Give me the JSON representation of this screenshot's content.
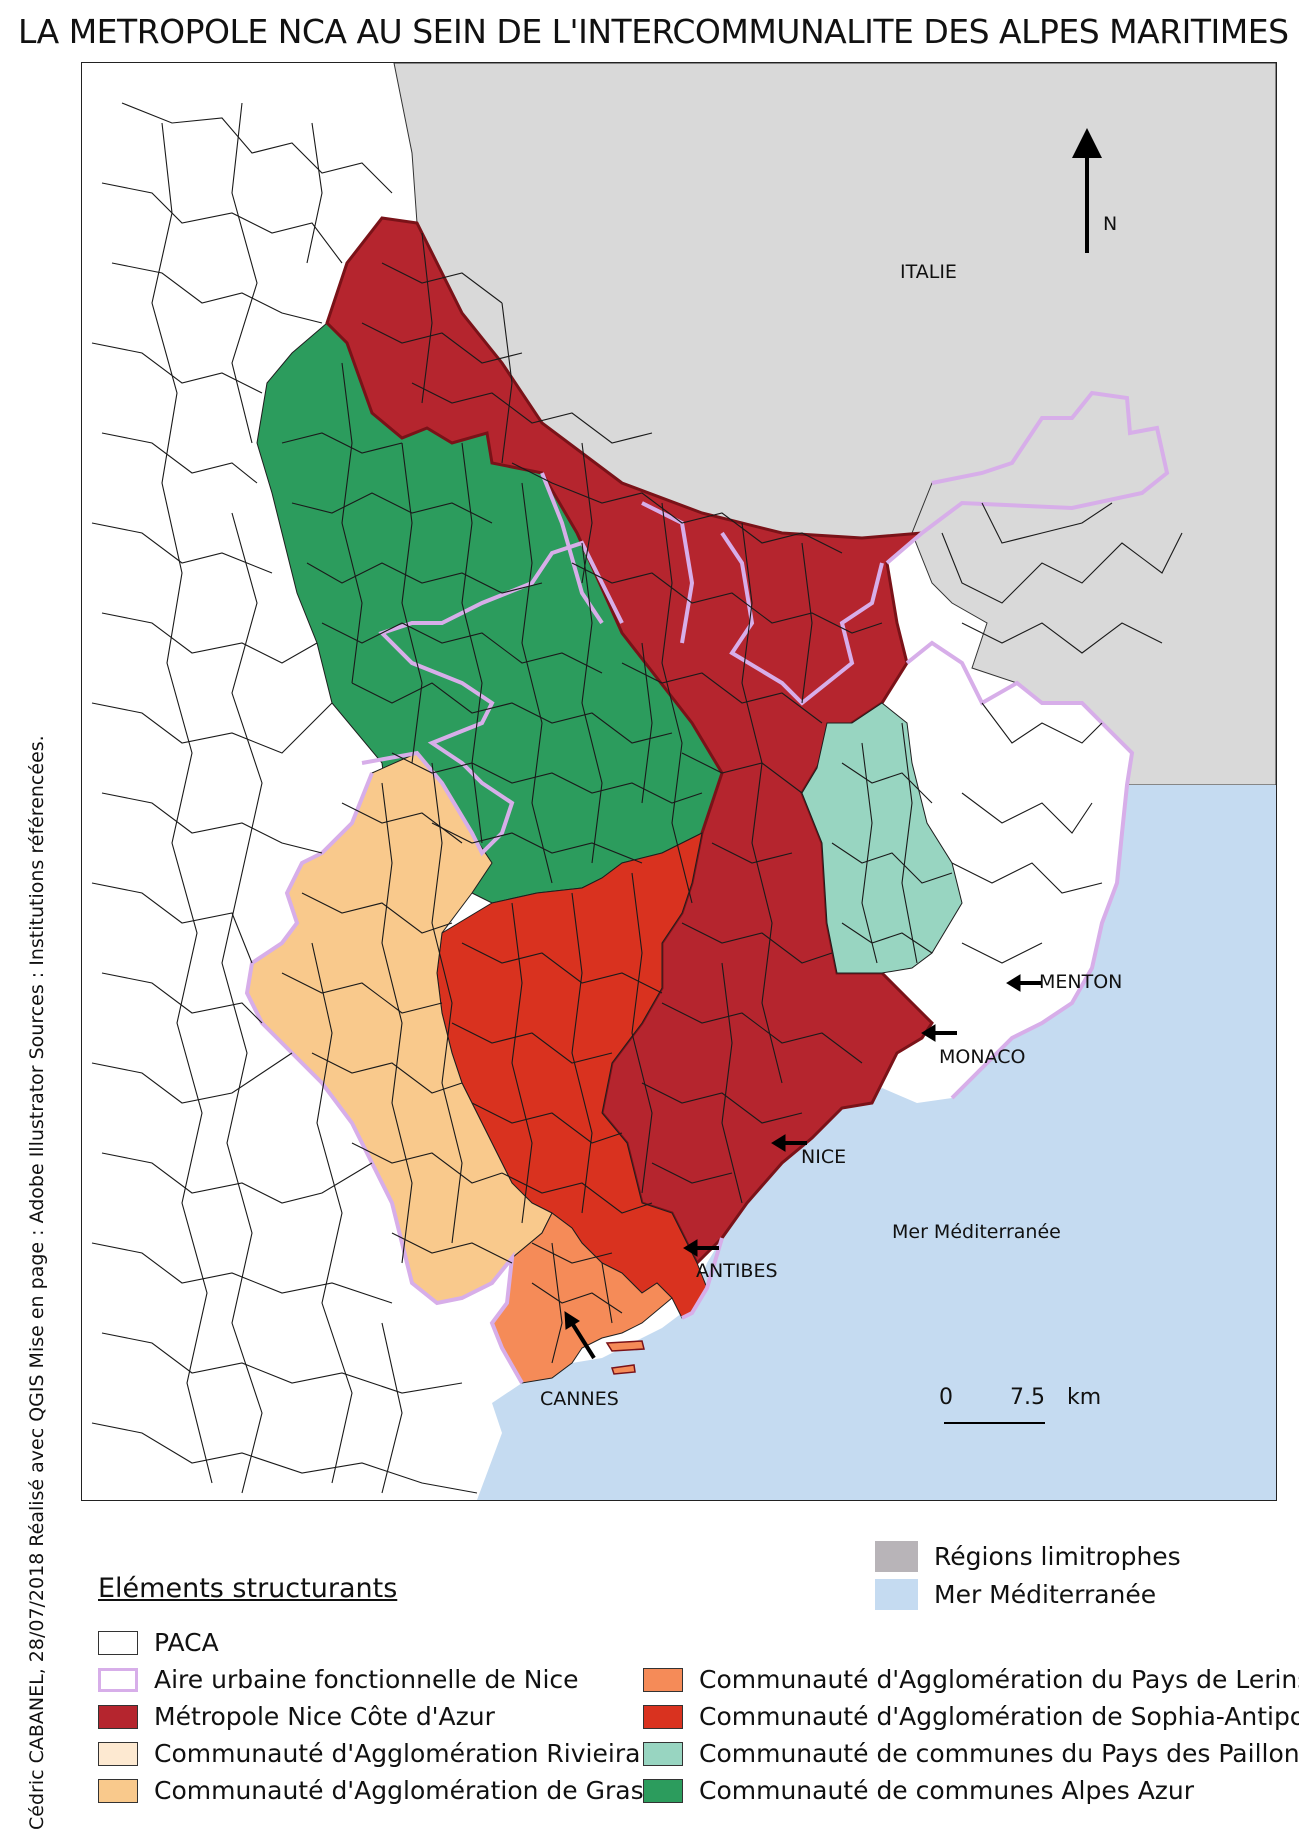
{
  "title": "LA METROPOLE NCA AU SEIN DE L'INTERCOMMUNALITE DES ALPES MARITIMES",
  "credits": [
    "Cédric CABANEL, 28/07/2018",
    "Réalisé avec QGIS",
    "Mise en page : Adobe Illustrator",
    "Sources : Institutions référencées."
  ],
  "north_label": "N",
  "map_labels": {
    "italie": "ITALIE",
    "mer": "Mer Méditerranée",
    "menton": "MENTON",
    "monaco": "MONACO",
    "nice": "NICE",
    "antibes": "ANTIBES",
    "cannes": "CANNES"
  },
  "scale_bar": {
    "start": "0",
    "end": "7.5",
    "unit": "km"
  },
  "colors": {
    "metropole": "#b5252e",
    "sophia": "#d9321f",
    "lerins": "#f58b58",
    "grasse": "#f9c98c",
    "riviera": "#fde9d1",
    "paillons": "#98d5c1",
    "alpes_azur": "#2c9c5d",
    "limitrophe": "#d9d9d9",
    "mer": "#c5dbf1",
    "aire_urbaine": "#d7aee9"
  },
  "legend": {
    "heading": "Eléments structurants",
    "regions_limitrophes": "Régions limitrophes",
    "mer": "Mer Méditerranée",
    "paca": "PACA",
    "aire_urbaine": "Aire urbaine fonctionnelle de Nice",
    "metropole": "Métropole Nice Côte d'Azur",
    "riviera": "Communauté d'Agglomération Rivieira",
    "grasse": "Communauté d'Agglomération de Grasse",
    "lerins": "Communauté d'Agglomération du Pays de Lerins",
    "sophia": "Communauté d'Agglomération de Sophia-Antipolis",
    "paillons": "Communauté de communes du Pays des Paillons",
    "alpes_azur": "Communauté de communes Alpes Azur"
  }
}
